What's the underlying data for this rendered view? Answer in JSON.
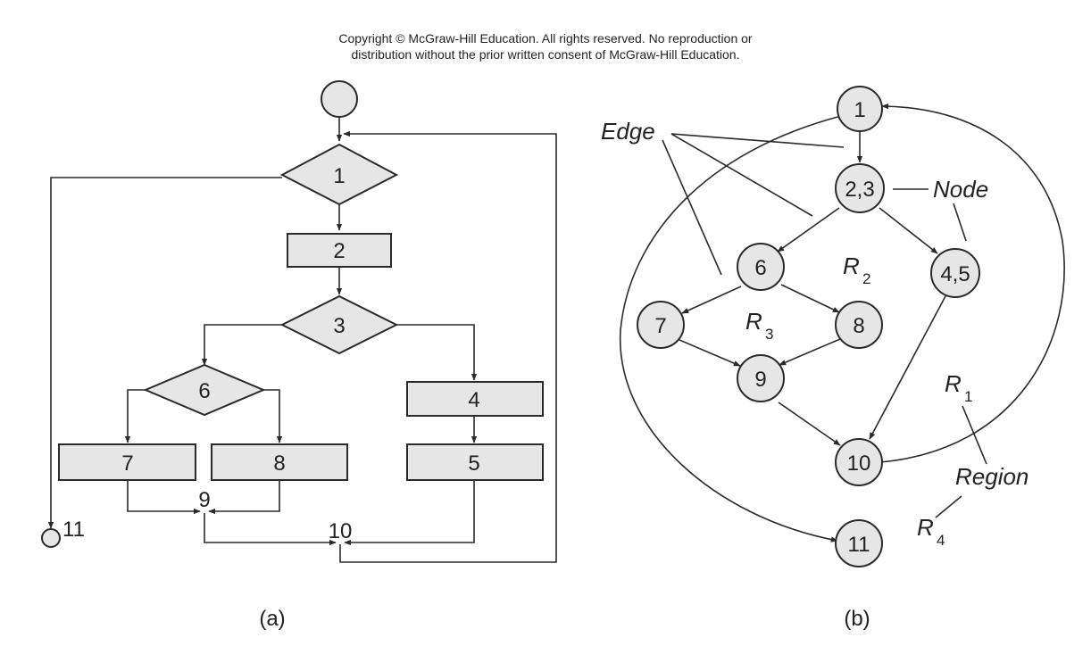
{
  "copyright": {
    "line1": "Copyright © McGraw-Hill Education. All rights reserved. No reproduction or",
    "line2": "distribution without the prior written consent of McGraw-Hill Education."
  },
  "flowchart": {
    "caption": "(a)",
    "labels": {
      "n1": "1",
      "n2": "2",
      "n3": "3",
      "n4": "4",
      "n5": "5",
      "n6": "6",
      "n7": "7",
      "n8": "8",
      "n9": "9",
      "n10": "10",
      "n11": "11"
    }
  },
  "flowgraph": {
    "caption": "(b)",
    "nodes": {
      "n1": "1",
      "n23": "2,3",
      "n45": "4,5",
      "n6": "6",
      "n7": "7",
      "n8": "8",
      "n9": "9",
      "n10": "10",
      "n11": "11"
    },
    "annotations": {
      "edge": "Edge",
      "node": "Node",
      "region": "Region"
    },
    "regions": {
      "r1": {
        "letter": "R",
        "sub": "1"
      },
      "r2": {
        "letter": "R",
        "sub": "2"
      },
      "r3": {
        "letter": "R",
        "sub": "3"
      },
      "r4": {
        "letter": "R",
        "sub": "4"
      }
    }
  }
}
